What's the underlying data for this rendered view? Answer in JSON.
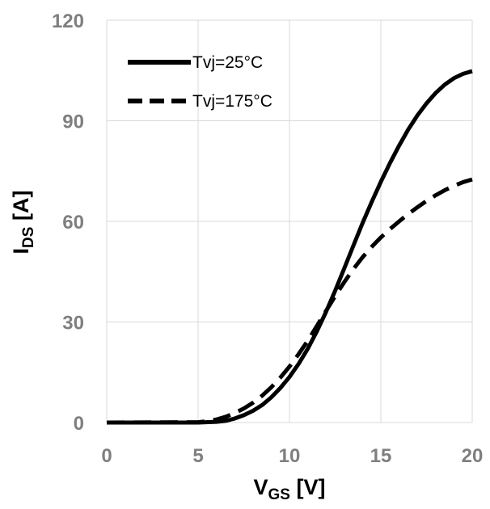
{
  "chart_data": {
    "type": "line",
    "title": "",
    "xlabel": {
      "main": "V",
      "sub": "GS",
      "unit": " [V]"
    },
    "ylabel": {
      "main": "I",
      "sub": "DS",
      "unit": " [A]"
    },
    "xlim": [
      0,
      20
    ],
    "ylim": [
      0,
      120
    ],
    "xticks": [
      "0",
      "5",
      "10",
      "15",
      "20"
    ],
    "yticks": [
      "0",
      "30",
      "60",
      "90",
      "120"
    ],
    "grid": true,
    "legend_position": "top-left",
    "series": [
      {
        "name": "Tvj=25°C",
        "style": "solid",
        "color": "#000000",
        "x": [
          0,
          5,
          6,
          6.5,
          7,
          7.5,
          8,
          8.5,
          9,
          9.5,
          10,
          10.5,
          11,
          11.5,
          12,
          12.5,
          13,
          13.5,
          14,
          14.5,
          15,
          15.5,
          16,
          16.5,
          17,
          17.5,
          18,
          18.5,
          19,
          19.5,
          20
        ],
        "y": [
          0,
          0,
          0.2,
          0.5,
          1.2,
          2.2,
          3.5,
          5.2,
          7.5,
          10.3,
          13.6,
          17.5,
          22.0,
          27.2,
          33.0,
          39.3,
          46.0,
          52.8,
          59.5,
          65.8,
          71.8,
          77.4,
          82.6,
          87.4,
          91.6,
          95.2,
          98.3,
          100.8,
          102.7,
          104.0,
          104.8
        ]
      },
      {
        "name": "Tvj=175°C",
        "style": "dashed",
        "color": "#000000",
        "x": [
          0,
          5,
          5.5,
          6,
          6.5,
          7,
          7.5,
          8,
          8.5,
          9,
          9.5,
          10,
          10.5,
          11,
          11.5,
          12,
          12.5,
          13,
          13.5,
          14,
          14.5,
          15,
          15.5,
          16,
          16.5,
          17,
          17.5,
          18,
          18.5,
          19,
          19.5,
          20
        ],
        "y": [
          0,
          0.1,
          0.4,
          0.9,
          1.7,
          2.8,
          4.2,
          5.9,
          8.0,
          10.5,
          13.4,
          16.7,
          20.4,
          24.4,
          28.8,
          33.3,
          37.7,
          41.9,
          45.8,
          49.3,
          52.4,
          55.2,
          57.7,
          60.0,
          62.2,
          64.2,
          66.1,
          67.8,
          69.3,
          70.6,
          71.7,
          72.5
        ]
      }
    ]
  }
}
